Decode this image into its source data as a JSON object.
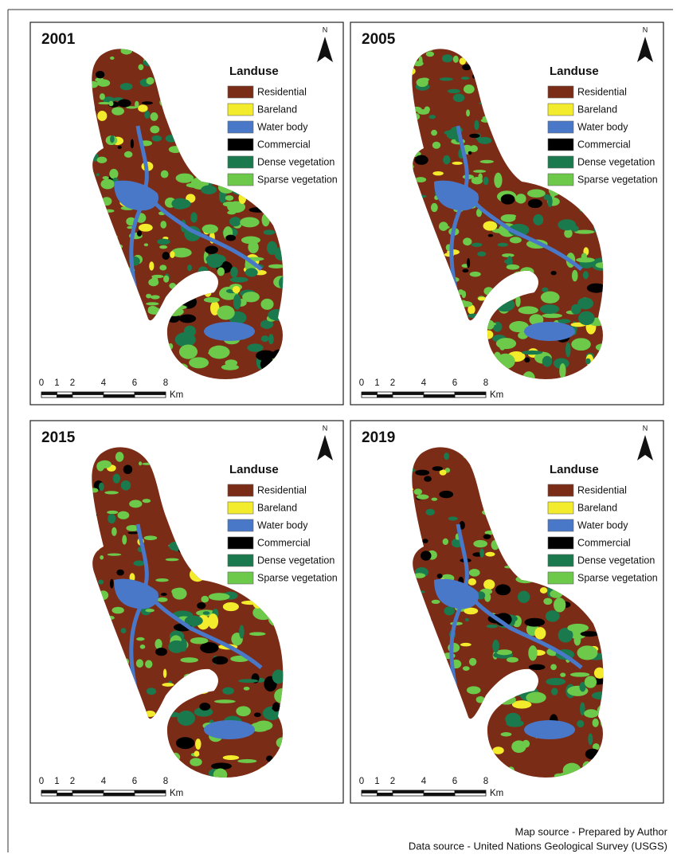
{
  "panels": [
    {
      "year": "2001",
      "north": "N",
      "legend": {
        "title": "Landuse",
        "items": [
          {
            "label": "Residential",
            "color": "#7b2c16"
          },
          {
            "label": "Bareland",
            "color": "#f2ec2c"
          },
          {
            "label": "Water body",
            "color": "#4a78c8"
          },
          {
            "label": "Commercial",
            "color": "#000000"
          },
          {
            "label": "Dense vegetation",
            "color": "#1a7a4e"
          },
          {
            "label": "Sparse vegetation",
            "color": "#6cc94a"
          }
        ]
      },
      "scale_bar": {
        "ticks": [
          0,
          1,
          2,
          4,
          6,
          8
        ],
        "unit": "Km"
      }
    },
    {
      "year": "2005",
      "north": "N",
      "legend": {
        "title": "Landuse",
        "items": [
          {
            "label": "Residential",
            "color": "#7b2c16"
          },
          {
            "label": "Bareland",
            "color": "#f2ec2c"
          },
          {
            "label": "Water body",
            "color": "#4a78c8"
          },
          {
            "label": "Commercial",
            "color": "#000000"
          },
          {
            "label": "Dense vegetation",
            "color": "#1a7a4e"
          },
          {
            "label": "Sparse vegetation",
            "color": "#6cc94a"
          }
        ]
      },
      "scale_bar": {
        "ticks": [
          0,
          1,
          2,
          4,
          6,
          8
        ],
        "unit": "Km"
      }
    },
    {
      "year": "2015",
      "north": "N",
      "legend": {
        "title": "Landuse",
        "items": [
          {
            "label": "Residential",
            "color": "#7b2c16"
          },
          {
            "label": "Bareland",
            "color": "#f2ec2c"
          },
          {
            "label": "Water body",
            "color": "#4a78c8"
          },
          {
            "label": "Commercial",
            "color": "#000000"
          },
          {
            "label": "Dense vegetation",
            "color": "#1a7a4e"
          },
          {
            "label": "Sparse vegetation",
            "color": "#6cc94a"
          }
        ]
      },
      "scale_bar": {
        "ticks": [
          0,
          1,
          2,
          4,
          6,
          8
        ],
        "unit": "Km"
      }
    },
    {
      "year": "2019",
      "north": "N",
      "legend": {
        "title": "Landuse",
        "items": [
          {
            "label": "Residential",
            "color": "#7b2c16"
          },
          {
            "label": "Bareland",
            "color": "#f2ec2c"
          },
          {
            "label": "Water body",
            "color": "#4a78c8"
          },
          {
            "label": "Commercial",
            "color": "#000000"
          },
          {
            "label": "Dense vegetation",
            "color": "#1a7a4e"
          },
          {
            "label": "Sparse vegetation",
            "color": "#6cc94a"
          }
        ]
      },
      "scale_bar": {
        "ticks": [
          0,
          1,
          2,
          4,
          6,
          8
        ],
        "unit": "Km"
      }
    }
  ],
  "footer": {
    "map_source": "Map source - Prepared by Author",
    "data_source": "Data source - United Nations Geological Survey (USGS)"
  }
}
